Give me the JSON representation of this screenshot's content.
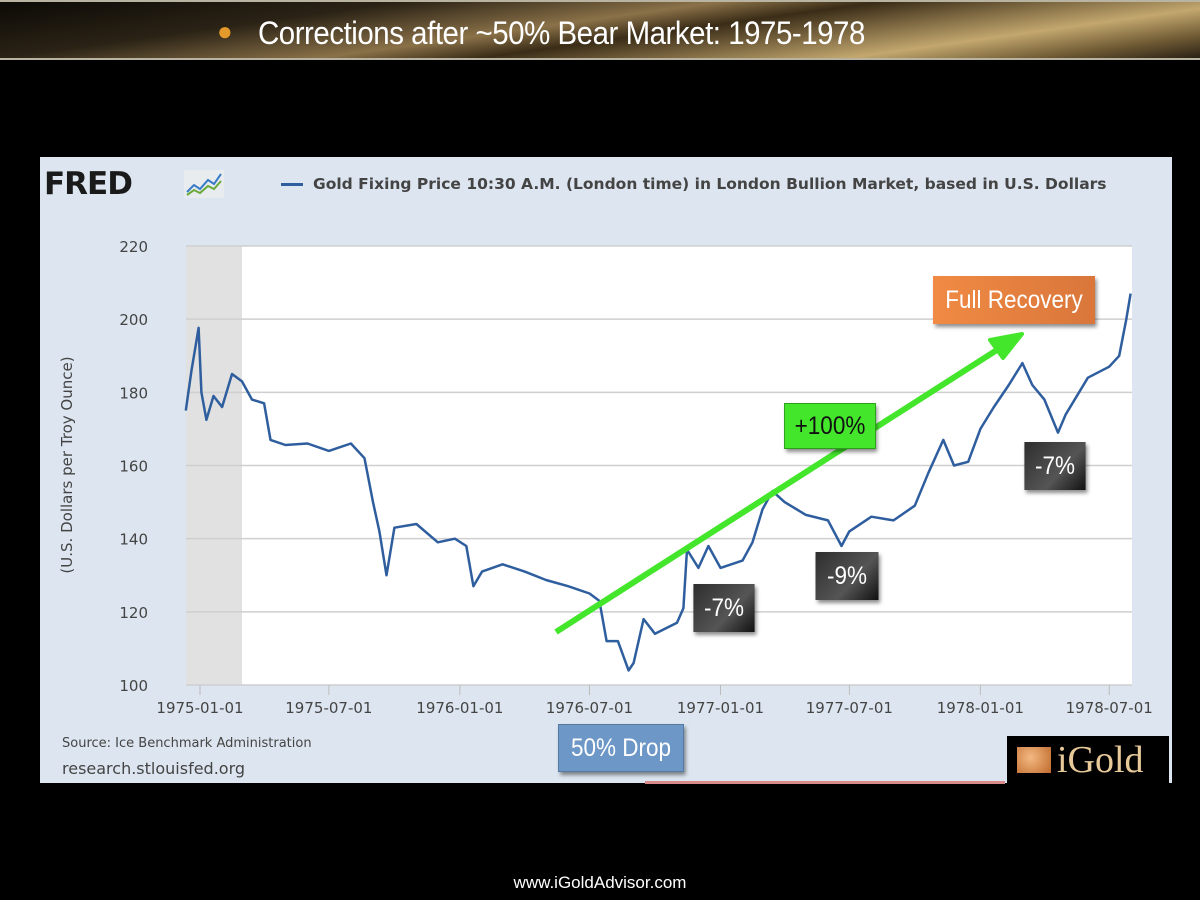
{
  "slide": {
    "title": "Corrections after ~50% Bear Market: 1975-1978",
    "footer": "www.iGoldAdvisor.com",
    "logo_text": "iGold"
  },
  "fred": {
    "logo": "FRED",
    "source": "Source: Ice Benchmark Administration",
    "site": "research.stlouisfed.org"
  },
  "chart_data": {
    "type": "line",
    "title": "",
    "ylabel": "(U.S. Dollars per Troy Ounce)",
    "xlabel": "",
    "ylim": [
      100,
      220
    ],
    "yticks": [
      "100",
      "120",
      "140",
      "160",
      "180",
      "200",
      "220"
    ],
    "xticks": [
      "1975-01-01",
      "1975-07-01",
      "1976-01-01",
      "1976-07-01",
      "1977-01-01",
      "1977-07-01",
      "1978-01-01",
      "1978-07-01"
    ],
    "grid": true,
    "legend_position": "top",
    "recession_shading": [
      "1974-12-12",
      "1975-03-01"
    ],
    "series": [
      {
        "name": "Gold Fixing Price 10:30 A.M. (London time) in London Bullion Market, based in U.S. Dollars",
        "color": "#2f5e9e",
        "points": [
          [
            "1974-12-12",
            175
          ],
          [
            "1974-12-20",
            186
          ],
          [
            "1974-12-30",
            197.6
          ],
          [
            "1975-01-03",
            180
          ],
          [
            "1975-01-10",
            172.5
          ],
          [
            "1975-01-20",
            179
          ],
          [
            "1975-02-01",
            176
          ],
          [
            "1975-02-15",
            185
          ],
          [
            "1975-03-01",
            183
          ],
          [
            "1975-03-15",
            178
          ],
          [
            "1975-04-01",
            177
          ],
          [
            "1975-04-10",
            167
          ],
          [
            "1975-05-01",
            165.6
          ],
          [
            "1975-06-01",
            166
          ],
          [
            "1975-07-01",
            164
          ],
          [
            "1975-08-01",
            166
          ],
          [
            "1975-08-20",
            162
          ],
          [
            "1975-09-01",
            150
          ],
          [
            "1975-09-10",
            142
          ],
          [
            "1975-09-20",
            130
          ],
          [
            "1975-10-01",
            143
          ],
          [
            "1975-11-01",
            144
          ],
          [
            "1975-12-01",
            139
          ],
          [
            "1975-12-25",
            140
          ],
          [
            "1976-01-10",
            138
          ],
          [
            "1976-01-20",
            127
          ],
          [
            "1976-02-01",
            131
          ],
          [
            "1976-03-01",
            133
          ],
          [
            "1976-04-01",
            131
          ],
          [
            "1976-05-01",
            128.7
          ],
          [
            "1976-06-01",
            127
          ],
          [
            "1976-07-01",
            125
          ],
          [
            "1976-07-15",
            123
          ],
          [
            "1976-07-25",
            112
          ],
          [
            "1976-08-10",
            112
          ],
          [
            "1976-08-25",
            104
          ],
          [
            "1976-09-01",
            106
          ],
          [
            "1976-09-15",
            118
          ],
          [
            "1976-10-01",
            114
          ],
          [
            "1976-11-01",
            117
          ],
          [
            "1976-11-10",
            121
          ],
          [
            "1976-11-15",
            137
          ],
          [
            "1976-12-01",
            132
          ],
          [
            "1976-12-15",
            138
          ],
          [
            "1977-01-01",
            132
          ],
          [
            "1977-02-01",
            134
          ],
          [
            "1977-02-15",
            139
          ],
          [
            "1977-03-01",
            148
          ],
          [
            "1977-03-15",
            153
          ],
          [
            "1977-04-01",
            150
          ],
          [
            "1977-05-01",
            146.5
          ],
          [
            "1977-06-01",
            145
          ],
          [
            "1977-06-20",
            138
          ],
          [
            "1977-07-01",
            142
          ],
          [
            "1977-08-01",
            146
          ],
          [
            "1977-09-01",
            145
          ],
          [
            "1977-10-01",
            149
          ],
          [
            "1977-10-20",
            158
          ],
          [
            "1977-11-10",
            167
          ],
          [
            "1977-11-25",
            160
          ],
          [
            "1977-12-15",
            161
          ],
          [
            "1978-01-01",
            170
          ],
          [
            "1978-01-20",
            176
          ],
          [
            "1978-02-10",
            182
          ],
          [
            "1978-03-01",
            188
          ],
          [
            "1978-03-15",
            182
          ],
          [
            "1978-04-01",
            178
          ],
          [
            "1978-04-20",
            169
          ],
          [
            "1978-05-01",
            174
          ],
          [
            "1978-06-01",
            184
          ],
          [
            "1978-07-01",
            187
          ],
          [
            "1978-07-15",
            190
          ],
          [
            "1978-07-25",
            200
          ],
          [
            "1978-07-31",
            207
          ]
        ]
      }
    ],
    "annotations": {
      "full_recovery": "Full Recovery",
      "gain": "+100%",
      "drop": "50% Drop",
      "correction1": "-7%",
      "correction2": "-9%",
      "correction3": "-7%"
    },
    "colors": {
      "arrow": "#44e62c",
      "line": "#2f5e9e"
    }
  }
}
